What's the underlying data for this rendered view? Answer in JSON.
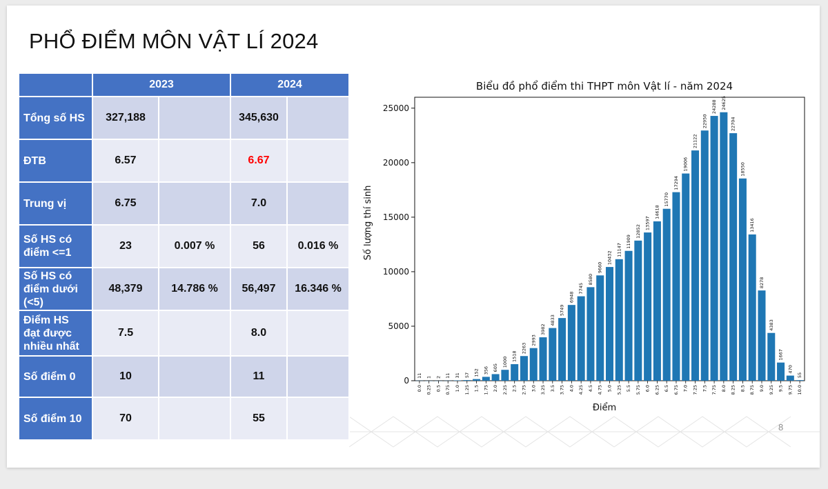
{
  "slide": {
    "title": "PHỔ ĐIỂM MÔN VẬT LÍ 2024",
    "page_number": "8"
  },
  "table": {
    "header": {
      "year_a": "2023",
      "year_b": "2024"
    },
    "rows": [
      {
        "label": "Tổng số HS",
        "v2023": "327,188",
        "p2023": "",
        "v2024": "345,630",
        "p2024": ""
      },
      {
        "label": "ĐTB",
        "v2023": "6.57",
        "p2023": "",
        "v2024": "6.67",
        "p2024": ""
      },
      {
        "label": "Trung vị",
        "v2023": "6.75",
        "p2023": "",
        "v2024": "7.0",
        "p2024": ""
      },
      {
        "label": "Số HS có điểm <=1",
        "v2023": "23",
        "p2023": "0.007 %",
        "v2024": "56",
        "p2024": "0.016 %"
      },
      {
        "label": "Số HS có điểm dưới (<5)",
        "v2023": "48,379",
        "p2023": "14.786 %",
        "v2024": "56,497",
        "p2024": "16.346 %"
      },
      {
        "label": "Điểm HS đạt được nhiều nhất",
        "v2023": "7.5",
        "p2023": "",
        "v2024": "8.0",
        "p2024": ""
      },
      {
        "label": "Số điểm 0",
        "v2023": "10",
        "p2023": "",
        "v2024": "11",
        "p2024": ""
      },
      {
        "label": "Số điểm 10",
        "v2023": "70",
        "p2023": "",
        "v2024": "55",
        "p2024": ""
      }
    ],
    "colors": {
      "header": "#4472c4",
      "band_a": "#cfd5ea",
      "band_b": "#e9ebf5",
      "highlight": "#ff0000"
    }
  },
  "chart_data": {
    "type": "bar",
    "title": "Biểu đồ phổ điểm thi THPT môn Vật lí - năm 2024",
    "xlabel": "Điểm",
    "ylabel": "Số lượng thí sinh",
    "categories": [
      "0.0",
      "0.25",
      "0.5",
      "0.75",
      "1.0",
      "1.25",
      "1.5",
      "1.75",
      "2.0",
      "2.25",
      "2.5",
      "2.75",
      "3.0",
      "3.25",
      "3.5",
      "3.75",
      "4.0",
      "4.25",
      "4.5",
      "4.75",
      "5.0",
      "5.25",
      "5.5",
      "5.75",
      "6.0",
      "6.25",
      "6.5",
      "6.75",
      "7.0",
      "7.25",
      "7.5",
      "7.75",
      "8.0",
      "8.25",
      "8.5",
      "8.75",
      "9.0",
      "9.25",
      "9.5",
      "9.75",
      "10.0"
    ],
    "values": [
      11,
      1,
      2,
      11,
      31,
      57,
      152,
      356,
      605,
      1000,
      1518,
      2263,
      2993,
      3982,
      4833,
      5749,
      6948,
      7745,
      8580,
      9660,
      10432,
      11147,
      11909,
      12852,
      13597,
      14618,
      15770,
      17294,
      19006,
      21122,
      22950,
      24288,
      24625,
      22704,
      18550,
      13416,
      8278,
      4383,
      1667,
      470,
      55
    ],
    "yticks": [
      0,
      5000,
      10000,
      15000,
      20000,
      25000
    ],
    "ylim": [
      0,
      26000
    ],
    "bar_color": "#1f77b4",
    "grid": false,
    "legend": "none"
  }
}
